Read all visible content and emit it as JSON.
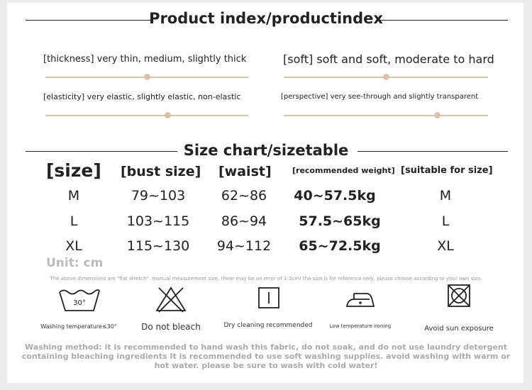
{
  "product_index": {
    "title": "Product index/productindex",
    "properties": [
      {
        "label": "[thickness] very thin, medium, slightly thick",
        "level": 0.5
      },
      {
        "label": "[soft] soft and soft, moderate to hard",
        "level": 0.5
      },
      {
        "label": "[elasticity] very elastic, slightly elastic, non-elastic",
        "level": 0.6
      },
      {
        "label": "[perspective] very see-through and slightly transparent",
        "level": 0.75
      }
    ]
  },
  "size_chart": {
    "title": "Size chart/sizetable",
    "headers": [
      "[size]",
      "[bust size]",
      "[waist]",
      "[recommended weight]",
      "[suitable for size]"
    ],
    "rows": [
      [
        "M",
        "79~103",
        "62~86",
        "40~57.5kg",
        "M"
      ],
      [
        "L",
        "103~115",
        "86~94",
        "57.5~65kg",
        "L"
      ],
      [
        "XL",
        "115~130",
        "94~112",
        "65~72.5kg",
        "XL"
      ]
    ],
    "unit": "Unit: cm",
    "note": "The above dimensions are \"flat stretch\". manual measurement size, there may be an error of 1-3cm! the size is for reference only, please choose according to your own size."
  },
  "care": {
    "icons": [
      {
        "icon": "washing-tub-icon",
        "text": "30°",
        "label": "Washing temperature≤30°"
      },
      {
        "icon": "no-bleach-icon",
        "label": "Do not bleach"
      },
      {
        "icon": "dry-clean-icon",
        "label": "Dry cleaning recommended"
      },
      {
        "icon": "iron-low-icon",
        "label": "Low temperature ironing"
      },
      {
        "icon": "no-sun-icon",
        "label": "Avoid sun exposure"
      }
    ],
    "washing_method": "Washing method: it is recommended to hand wash this fabric, do not soak, and do not use laundry detergent containing bleaching ingredients It is recommended to use soft washing supplies. avoid washing with warm or hot water. please be sure to wash with cold water!"
  }
}
